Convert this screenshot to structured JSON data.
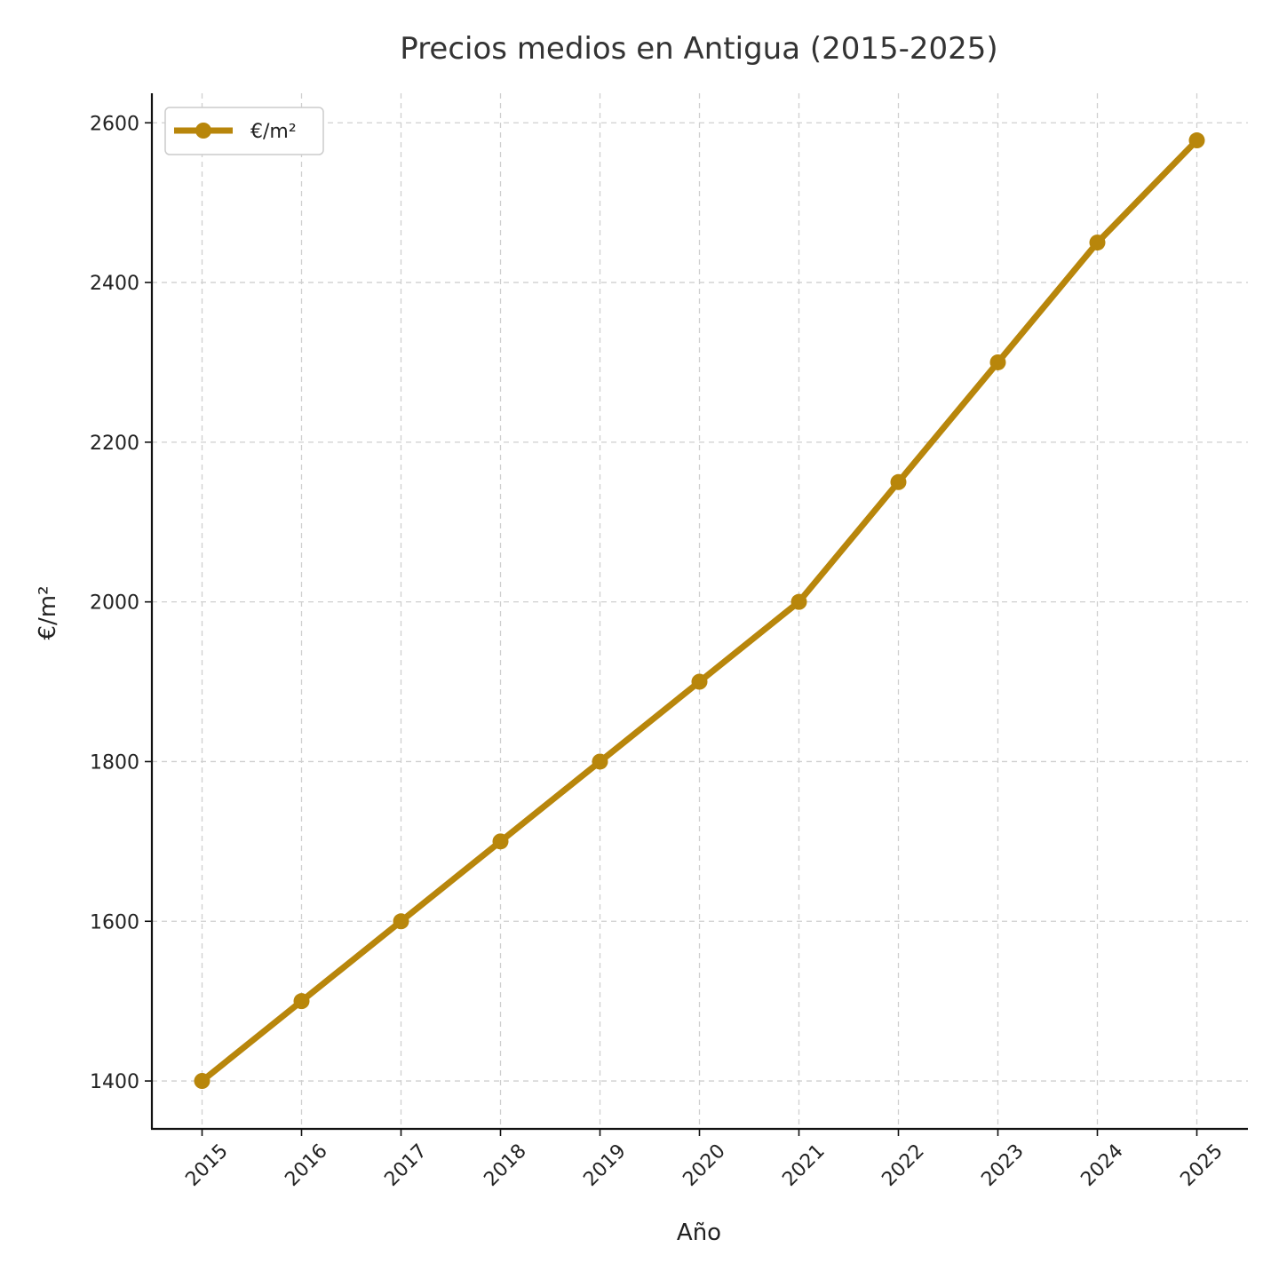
{
  "chart_data": {
    "type": "line",
    "title": "Precios medios en Antigua (2015-2025)",
    "xlabel": "Año",
    "ylabel": "€/m²",
    "categories": [
      "2015",
      "2016",
      "2017",
      "2018",
      "2019",
      "2020",
      "2021",
      "2022",
      "2023",
      "2024",
      "2025"
    ],
    "series": [
      {
        "name": "€/m²",
        "values": [
          1400,
          1500,
          1600,
          1700,
          1800,
          1900,
          2000,
          2150,
          2300,
          2450,
          2578
        ],
        "color": "#b8860b"
      }
    ],
    "ylim": [
      1340,
      2637
    ],
    "yticks": [
      1400,
      1600,
      1800,
      2000,
      2200,
      2400,
      2600
    ],
    "grid": true,
    "legend_position": "top-left",
    "x_tick_rotation": "45°"
  }
}
